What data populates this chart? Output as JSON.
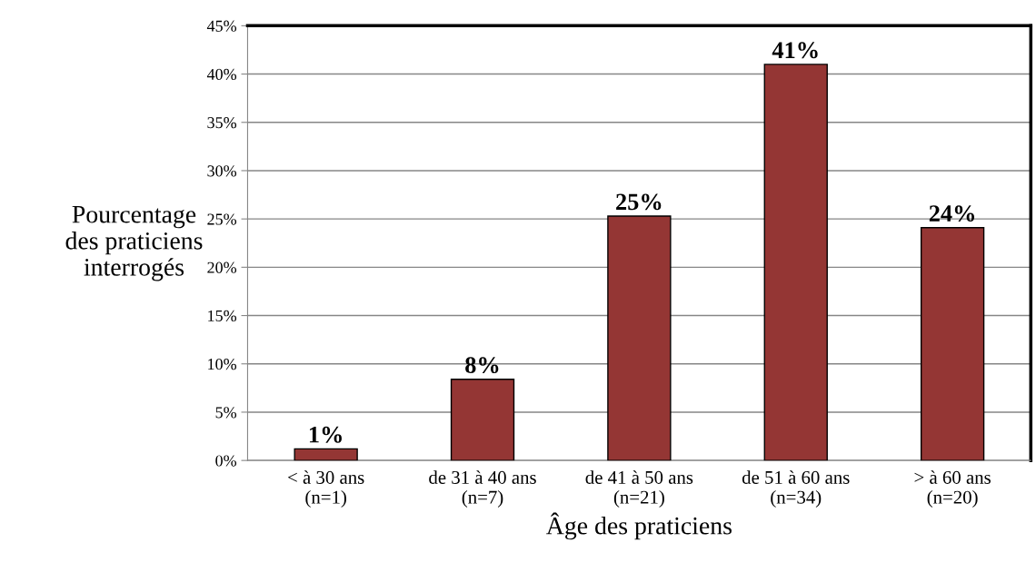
{
  "chart_data": {
    "type": "bar",
    "xlabel": "Âge des praticiens",
    "ylabel": "Pourcentage\ndes praticiens\ninterrogés",
    "categories": [
      "< à 30 ans\n(n=1)",
      "de 31 à 40 ans\n(n=7)",
      "de 41 à 50 ans\n(n=21)",
      "de 51 à 60 ans\n(n=34)",
      "> à 60 ans\n(n=20)"
    ],
    "values": [
      1.2,
      8.4,
      25.3,
      41.0,
      24.1
    ],
    "color": "#943634",
    "value_labels": [
      "1%",
      "8%",
      "25%",
      "41%",
      "24%"
    ],
    "ylim": [
      0,
      45
    ],
    "yticks": [
      {
        "value": 0,
        "label": "0%"
      },
      {
        "value": 5,
        "label": "5%"
      },
      {
        "value": 10,
        "label": "10%"
      },
      {
        "value": 15,
        "label": "15%"
      },
      {
        "value": 20,
        "label": "20%"
      },
      {
        "value": 25,
        "label": "25%"
      },
      {
        "value": 30,
        "label": "30%"
      },
      {
        "value": 35,
        "label": "35%"
      },
      {
        "value": 40,
        "label": "40%"
      },
      {
        "value": 45,
        "label": "45%"
      }
    ],
    "grid": "y",
    "legend": false
  }
}
